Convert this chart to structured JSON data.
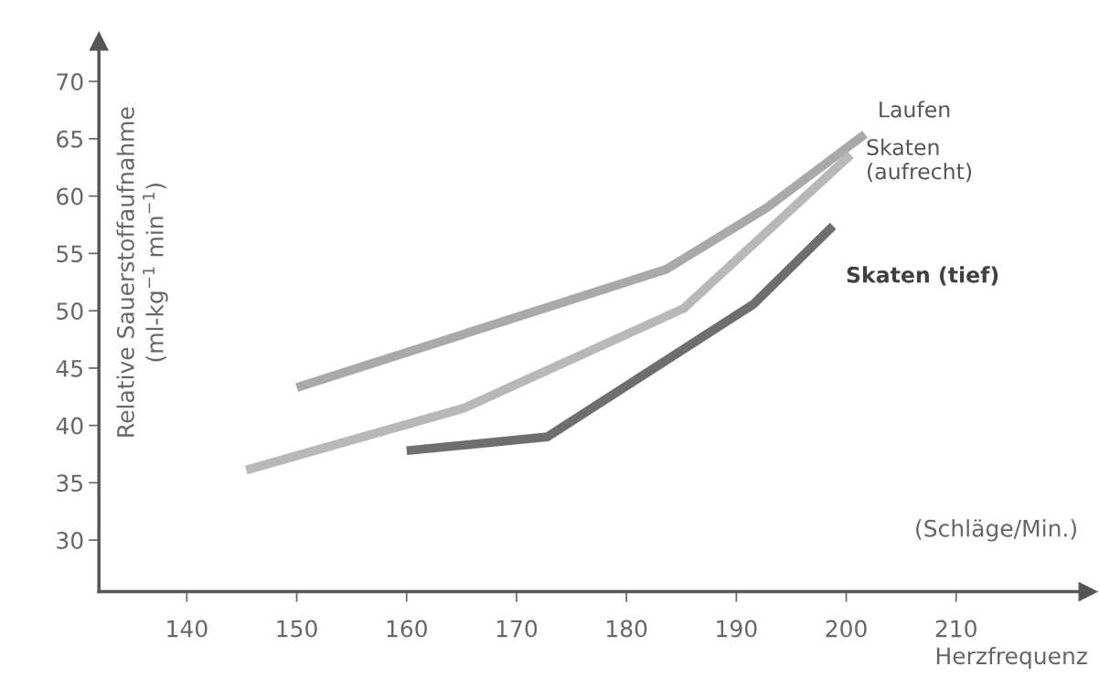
{
  "chart_data": {
    "type": "line",
    "xlabel": "Herzfrequenz",
    "ylabel": "Relative Sauerstoffaufnahme\n(ml-kg$^{−1}$ min$^{−1}$)",
    "annotations": [
      "(Schläge/Min.)"
    ],
    "series": [
      {
        "name": "Laufen",
        "color": "#a9a9a9",
        "x": [
          150,
          183.6,
          192.8,
          201.7
        ],
        "values": [
          43.3,
          53.6,
          59,
          65.4
        ]
      },
      {
        "name": "Skaten (aufrecht)",
        "color": "#b8b8b8",
        "x": [
          145.4,
          165.2,
          185.2,
          200.4
        ],
        "values": [
          36.1,
          41.5,
          50.2,
          63.6
        ]
      },
      {
        "name": "Skaten (tief)",
        "color": "#6e6e6e",
        "x": [
          160,
          172.8,
          191.6,
          198.8
        ],
        "values": [
          37.8,
          39.0,
          50.6,
          57.4
        ]
      }
    ],
    "xlim": [
      132,
      222
    ],
    "xticks": [
      140,
      150,
      160,
      170,
      180,
      190,
      200,
      210
    ],
    "ylim": [
      25.5,
      73.5
    ],
    "yticks": [
      30,
      35,
      40,
      45,
      50,
      55,
      60,
      65,
      70
    ],
    "grid": false,
    "legend": false,
    "marker": "none",
    "line_style": "solid"
  }
}
